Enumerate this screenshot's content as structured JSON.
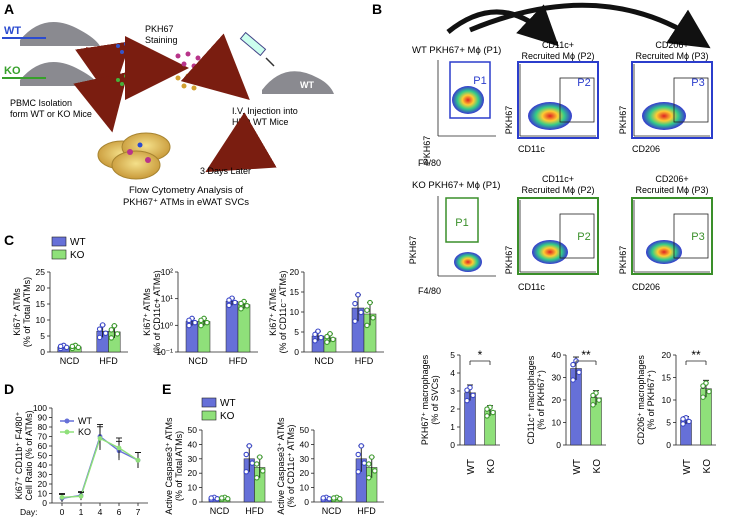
{
  "panels": {
    "A": "A",
    "B": "B",
    "C": "C",
    "D": "D",
    "E": "E"
  },
  "panelA": {
    "wt": "WT",
    "ko": "KO",
    "pbmc1": "PBMC Isolation",
    "pbmc2": "form WT or KO Mice",
    "pkh1": "PKH67",
    "pkh2": "Staining",
    "iv1": "I.V. Injection into",
    "iv2": "HFD WT Mice",
    "days": "3 Days Later",
    "flow1": "Flow Cytometry Analysis of",
    "flow2": "PKH67⁺ ATMs in eWAT SVCs",
    "mouse_label": "WT"
  },
  "panelB": {
    "wt_title": "WT PKH67+ Mϕ (P1)",
    "ko_title": "KO PKH67+ Mϕ (P1)",
    "cd11c_t1": "CD11c+",
    "cd11c_t2": "Recruited Mϕ (P2)",
    "cd206_t1": "CD206+",
    "cd206_t2": "Recruited Mϕ (P3)",
    "ax_pkh": "PKH67",
    "ax_f480": "F4/80",
    "ax_cd11c": "CD11c",
    "ax_cd206": "CD206",
    "g1": "P1",
    "g2": "P2",
    "g3": "P3",
    "colors": {
      "wt_gate": "#2b3dcc",
      "ko_gate": "#3a8f2a"
    }
  },
  "legend": {
    "wt": "WT",
    "ko": "KO"
  },
  "colors": {
    "wt": "#6670d8",
    "ko": "#8fe07a",
    "wt_dot": "#3a46c8",
    "ko_dot": "#3c9a2c",
    "err": "#111111"
  },
  "groups": {
    "ncd": "NCD",
    "hfd": "HFD"
  },
  "sig": {
    "s1": "*",
    "s2": "**"
  },
  "chart_data": [
    {
      "id": "C1",
      "type": "bar",
      "ylabel": "Ki67⁺ ATMs",
      "ylabel2": "(% of Total ATMs)",
      "categories": [
        "NCD",
        "HFD"
      ],
      "series": [
        {
          "name": "WT",
          "values": [
            1.6,
            6.5
          ]
        },
        {
          "name": "KO",
          "values": [
            1.6,
            6.3
          ]
        }
      ],
      "ylim": [
        0,
        25
      ],
      "yticks": [
        "0",
        "5",
        "10",
        "15",
        "20",
        "25"
      ]
    },
    {
      "id": "C2",
      "type": "bar",
      "ylabel": "Ki67⁺ ATMs",
      "ylabel2": "(% of CD11c+ ATMs)",
      "scale": "log",
      "categories": [
        "NCD",
        "HFD"
      ],
      "series": [
        {
          "name": "WT",
          "values": [
            1.4,
            8.0
          ]
        },
        {
          "name": "KO",
          "values": [
            1.4,
            6.0
          ]
        }
      ],
      "ylim": [
        0.1,
        100
      ],
      "yticks": [
        "10⁻¹",
        "10⁰",
        "10¹",
        "10²"
      ]
    },
    {
      "id": "C3",
      "type": "bar",
      "ylabel": "Ki67⁺ ATMs",
      "ylabel2": "(% of CD11c⁻ ATMs)",
      "categories": [
        "NCD",
        "HFD"
      ],
      "series": [
        {
          "name": "WT",
          "values": [
            4,
            11
          ]
        },
        {
          "name": "KO",
          "values": [
            3.5,
            9.5
          ]
        }
      ],
      "ylim": [
        0,
        20
      ],
      "yticks": [
        "0",
        "5",
        "10",
        "15",
        "20"
      ]
    },
    {
      "id": "D",
      "type": "line",
      "ylabel": "Ki67⁺ CD11b⁺ F4/80⁺",
      "ylabel2": "Cell Ratio (% of ATMs)",
      "xlabel": "Day:",
      "x": [
        0,
        1,
        4,
        6,
        7
      ],
      "series": [
        {
          "name": "WT",
          "values": [
            5,
            8,
            70,
            55,
            45
          ]
        },
        {
          "name": "KO",
          "values": [
            6,
            7,
            68,
            58,
            45
          ]
        }
      ],
      "ylim": [
        0,
        100
      ],
      "yticks": [
        "0",
        "10",
        "20",
        "30",
        "40",
        "50",
        "60",
        "70",
        "80",
        "90",
        "100"
      ]
    },
    {
      "id": "E1",
      "type": "bar",
      "ylabel": "Active Caspase3⁺ ATMs",
      "ylabel2": "(% of Total ATMs)",
      "categories": [
        "NCD",
        "HFD"
      ],
      "series": [
        {
          "name": "WT",
          "values": [
            2.5,
            30
          ]
        },
        {
          "name": "KO",
          "values": [
            2.5,
            24
          ]
        }
      ],
      "ylim": [
        0,
        50
      ],
      "yticks": [
        "0",
        "10",
        "20",
        "30",
        "40",
        "50"
      ]
    },
    {
      "id": "E2",
      "type": "bar",
      "ylabel": "Active Caspase3⁺ ATMs",
      "ylabel2": "(% of CD11c⁺ ATMs)",
      "categories": [
        "NCD",
        "HFD"
      ],
      "series": [
        {
          "name": "WT",
          "values": [
            2.5,
            30
          ]
        },
        {
          "name": "KO",
          "values": [
            2.5,
            24
          ]
        }
      ],
      "ylim": [
        0,
        50
      ],
      "yticks": [
        "0",
        "10",
        "20",
        "30",
        "40",
        "50"
      ]
    },
    {
      "id": "B1",
      "type": "bar",
      "ylabel": "PKH67⁺ macrophages",
      "ylabel2": "(% of SVCs)",
      "categories": [
        "WT",
        "KO"
      ],
      "series": [
        {
          "name": "value",
          "values": [
            2.9,
            1.9
          ]
        }
      ],
      "ylim": [
        0,
        5
      ],
      "yticks": [
        "0",
        "1",
        "2",
        "3",
        "4",
        "5"
      ],
      "sig": "*"
    },
    {
      "id": "B2",
      "type": "bar",
      "ylabel": "CD11c⁺ macrophages",
      "ylabel2": "(% of PKH67⁺)",
      "categories": [
        "WT",
        "KO"
      ],
      "series": [
        {
          "name": "value",
          "values": [
            34,
            21
          ]
        }
      ],
      "ylim": [
        0,
        40
      ],
      "yticks": [
        "0",
        "10",
        "20",
        "30",
        "40"
      ],
      "sig": "**"
    },
    {
      "id": "B3",
      "type": "bar",
      "ylabel": "CD206⁺ macrophages",
      "ylabel2": "(% of PKH67⁺)",
      "categories": [
        "WT",
        "KO"
      ],
      "series": [
        {
          "name": "value",
          "values": [
            5.5,
            12.5
          ]
        }
      ],
      "ylim": [
        0,
        20
      ],
      "yticks": [
        "0",
        "5",
        "10",
        "15",
        "20"
      ],
      "sig": "**"
    }
  ]
}
